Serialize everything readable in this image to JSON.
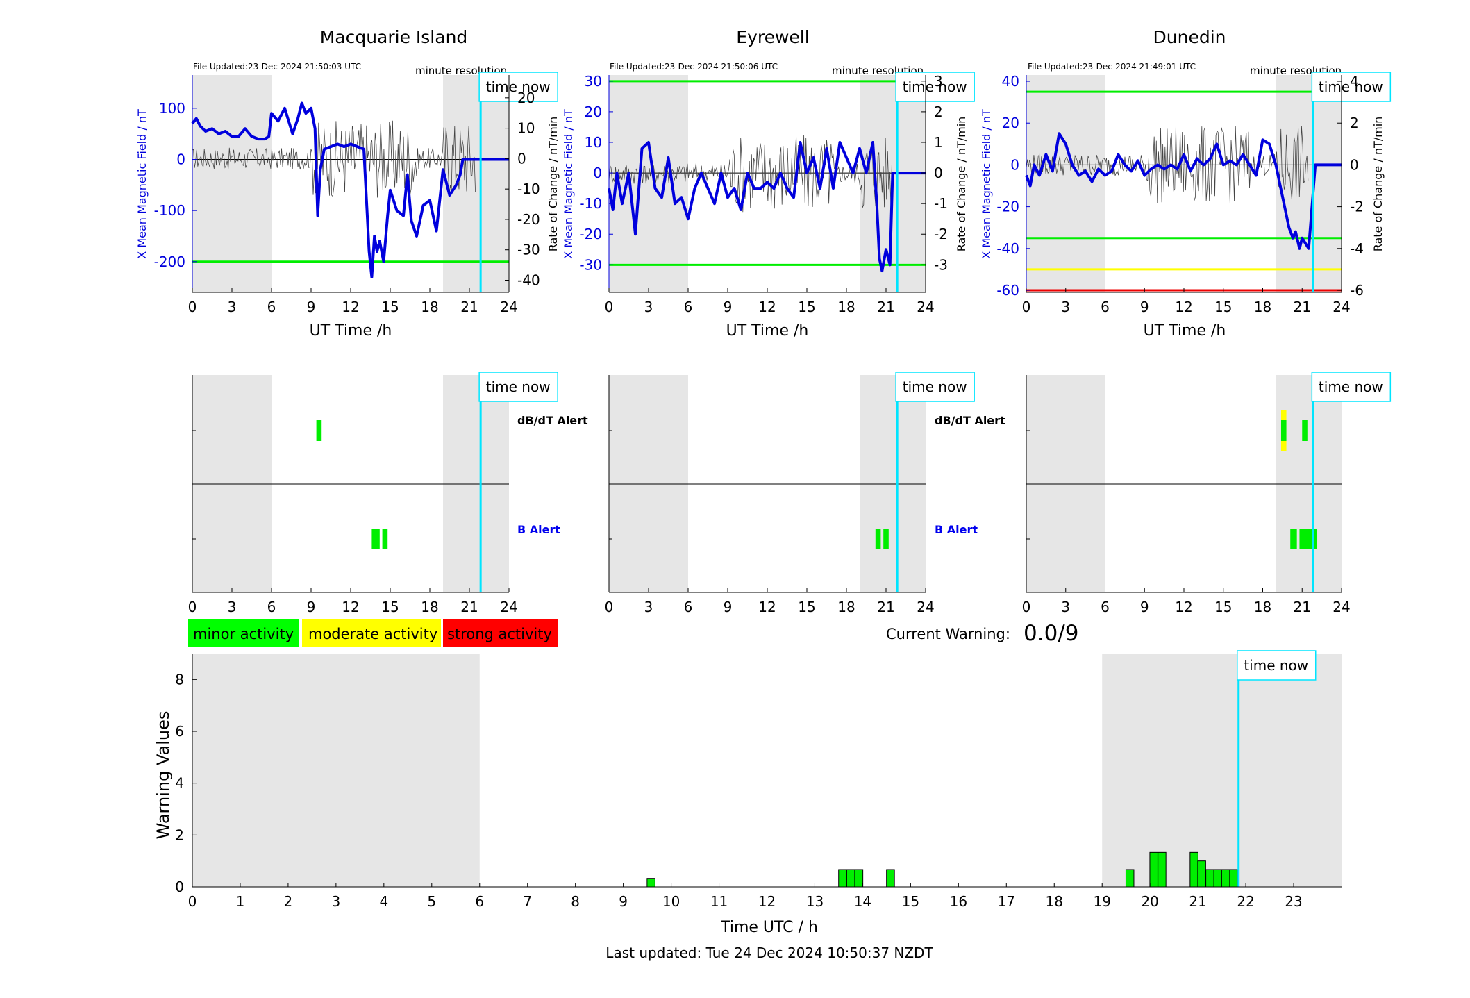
{
  "time_now_label": "time now",
  "minute_resolution_label": "minute resolution",
  "current_warning_label": "Current Warning:",
  "current_warning_value": "0.0/9",
  "last_updated": "Last updated: Tue 24 Dec 2024 10:50:37 NZDT",
  "legend": [
    {
      "label": "minor activity",
      "color": "#00ff00"
    },
    {
      "label": "moderate activity",
      "color": "#ffff00"
    },
    {
      "label": "strong activity",
      "color": "#ff0000"
    }
  ],
  "colors": {
    "field": "#0000dd",
    "rate": "#444444",
    "time_now": "#00e5ff",
    "shade": "#e6e6e6",
    "threshold_green": "#00ee00",
    "threshold_yellow": "#ffff00",
    "threshold_red": "#ee0000"
  },
  "chart_data": [
    {
      "type": "line",
      "station": "Macquarie Island",
      "file_updated": "File Updated:23-Dec-2024 21:50:03 UTC",
      "xlabel": "UT Time /h",
      "ylabel_left": "X Mean Magnetic Field / nT",
      "ylabel_right": "Rate of Change / nT/min",
      "xlim": [
        0,
        24
      ],
      "xticks": [
        0,
        3,
        6,
        9,
        12,
        15,
        18,
        21,
        24
      ],
      "ylim_left": [
        -260,
        165
      ],
      "yticks_left": [
        100,
        0,
        -100,
        -200
      ],
      "ylim_right": [
        -44,
        27.5
      ],
      "yticks_right": [
        20,
        10,
        0,
        -10,
        -20,
        -30,
        -40
      ],
      "shade": [
        [
          0,
          6
        ],
        [
          19,
          24
        ]
      ],
      "time_now": 21.85,
      "thresholds": [
        {
          "value": -200,
          "color": "green"
        }
      ],
      "series": [
        {
          "x": [
            0,
            0.3,
            0.6,
            1,
            1.5,
            2,
            2.5,
            3,
            3.5,
            4,
            4.5,
            5,
            5.5,
            5.8,
            6,
            6.5,
            7,
            7.3,
            7.6,
            8,
            8.3,
            8.6,
            9,
            9.3,
            9.5,
            9.7,
            10,
            10.5,
            11,
            11.5,
            12,
            12.5,
            13,
            13.2,
            13.4,
            13.6,
            13.8,
            14,
            14.2,
            14.5,
            14.8,
            15,
            15.5,
            16,
            16.3,
            16.6,
            17,
            17.5,
            18,
            18.5,
            19,
            19.5,
            20,
            20.3,
            20.5,
            24
          ],
          "values": [
            70,
            80,
            65,
            55,
            60,
            50,
            55,
            45,
            45,
            60,
            45,
            40,
            40,
            45,
            90,
            75,
            100,
            75,
            50,
            80,
            110,
            90,
            100,
            60,
            -110,
            -20,
            20,
            25,
            30,
            25,
            30,
            25,
            20,
            -80,
            -180,
            -230,
            -150,
            -180,
            -160,
            -200,
            -110,
            -60,
            -100,
            -110,
            -30,
            -120,
            -150,
            -90,
            -80,
            -140,
            -20,
            -70,
            -50,
            -30,
            0,
            0
          ]
        }
      ]
    },
    {
      "type": "line",
      "station": "Eyrewell",
      "file_updated": "File Updated:23-Dec-2024 21:50:06 UTC",
      "xlabel": "UT Time /h",
      "ylabel_left": "X Mean Magnetic Field / nT",
      "ylabel_right": "Rate of Change / nT/min",
      "xlim": [
        0,
        24
      ],
      "xticks": [
        0,
        3,
        6,
        9,
        12,
        15,
        18,
        21,
        24
      ],
      "ylim_left": [
        -39,
        32
      ],
      "yticks_left": [
        30,
        20,
        10,
        0,
        -10,
        -20,
        -30
      ],
      "ylim_right": [
        -3.9,
        3.2
      ],
      "yticks_right": [
        3,
        2,
        1,
        0,
        -1,
        -2,
        -3
      ],
      "shade": [
        [
          0,
          6
        ],
        [
          19,
          24
        ]
      ],
      "time_now": 21.85,
      "thresholds": [
        {
          "value": 30,
          "color": "green"
        },
        {
          "value": -30,
          "color": "green"
        }
      ],
      "series": [
        {
          "x": [
            0,
            0.3,
            0.6,
            1,
            1.5,
            2,
            2.5,
            3,
            3.5,
            4,
            4.5,
            5,
            5.5,
            6,
            6.5,
            7,
            7.5,
            8,
            8.5,
            9,
            9.5,
            10,
            10.5,
            11,
            11.5,
            12,
            12.5,
            13,
            13.5,
            14,
            14.5,
            15,
            15.5,
            16,
            16.5,
            17,
            17.5,
            18,
            18.5,
            19,
            19.5,
            20,
            20.3,
            20.5,
            20.7,
            21,
            21.3,
            21.5,
            24
          ],
          "values": [
            -5,
            -12,
            0,
            -10,
            0,
            -20,
            8,
            10,
            -5,
            -8,
            5,
            -10,
            -8,
            -15,
            -5,
            0,
            -5,
            -10,
            0,
            -8,
            -5,
            -12,
            0,
            -5,
            -5,
            -3,
            -5,
            0,
            -5,
            -8,
            10,
            0,
            5,
            -5,
            8,
            -5,
            10,
            5,
            0,
            8,
            0,
            10,
            -10,
            -28,
            -32,
            -25,
            -30,
            0,
            0
          ]
        }
      ]
    },
    {
      "type": "line",
      "station": "Dunedin",
      "file_updated": "File Updated:23-Dec-2024 21:49:01 UTC",
      "xlabel": "UT Time /h",
      "ylabel_left": "X Mean Magnetic Field / nT",
      "ylabel_right": "Rate of Change / nT/min",
      "xlim": [
        0,
        24
      ],
      "xticks": [
        0,
        3,
        6,
        9,
        12,
        15,
        18,
        21,
        24
      ],
      "ylim_left": [
        -61,
        43
      ],
      "yticks_left": [
        40,
        20,
        0,
        -20,
        -40,
        -60
      ],
      "ylim_right": [
        -6.1,
        4.3
      ],
      "yticks_right": [
        4,
        2,
        0,
        -2,
        -4,
        -6
      ],
      "shade": [
        [
          0,
          6
        ],
        [
          19,
          24
        ]
      ],
      "time_now": 21.85,
      "thresholds": [
        {
          "value": 35,
          "color": "green"
        },
        {
          "value": -35,
          "color": "green"
        },
        {
          "value": -50,
          "color": "yellow"
        },
        {
          "value": -60,
          "color": "red"
        }
      ],
      "series": [
        {
          "x": [
            0,
            0.3,
            0.6,
            1,
            1.5,
            2,
            2.5,
            3,
            3.5,
            4,
            4.5,
            5,
            5.5,
            6,
            6.5,
            7,
            7.5,
            8,
            8.5,
            9,
            9.5,
            10,
            10.5,
            11,
            11.5,
            12,
            12.5,
            13,
            13.5,
            14,
            14.5,
            15,
            15.5,
            16,
            16.5,
            17,
            17.5,
            18,
            18.5,
            19,
            19.5,
            20,
            20.3,
            20.5,
            20.8,
            21,
            21.3,
            21.5,
            22,
            24
          ],
          "values": [
            -5,
            -10,
            0,
            -5,
            5,
            -3,
            15,
            10,
            0,
            -5,
            -3,
            -8,
            -2,
            -5,
            -3,
            5,
            0,
            -3,
            2,
            -5,
            -2,
            0,
            -2,
            0,
            -2,
            5,
            -3,
            3,
            0,
            3,
            10,
            0,
            2,
            0,
            5,
            0,
            -5,
            12,
            10,
            0,
            -15,
            -30,
            -35,
            -32,
            -40,
            -35,
            -38,
            -40,
            0,
            0
          ]
        }
      ]
    },
    {
      "type": "bar",
      "station": "Macquarie Island",
      "label_top": "dB/dT Alert",
      "label_bottom": "B Alert",
      "xlim": [
        0,
        24
      ],
      "xticks": [
        0,
        3,
        6,
        9,
        12,
        15,
        18,
        21,
        24
      ],
      "shade": [
        [
          0,
          6
        ],
        [
          19,
          24
        ]
      ],
      "time_now": 21.85,
      "dbdt_alerts": [
        {
          "start": 9.4,
          "end": 9.8,
          "level": "minor"
        }
      ],
      "b_alerts": [
        {
          "start": 13.6,
          "end": 14.2,
          "level": "minor"
        },
        {
          "start": 14.4,
          "end": 14.8,
          "level": "minor"
        }
      ]
    },
    {
      "type": "bar",
      "station": "Eyrewell",
      "label_top": "dB/dT Alert",
      "label_bottom": "B Alert",
      "xlim": [
        0,
        24
      ],
      "xticks": [
        0,
        3,
        6,
        9,
        12,
        15,
        18,
        21,
        24
      ],
      "shade": [
        [
          0,
          6
        ],
        [
          19,
          24
        ]
      ],
      "time_now": 21.85,
      "dbdt_alerts": [],
      "b_alerts": [
        {
          "start": 20.2,
          "end": 20.6,
          "level": "minor"
        },
        {
          "start": 20.8,
          "end": 21.2,
          "level": "minor"
        }
      ]
    },
    {
      "type": "bar",
      "station": "Dunedin",
      "label_top": "",
      "label_bottom": "",
      "xlim": [
        0,
        24
      ],
      "xticks": [
        0,
        3,
        6,
        9,
        12,
        15,
        18,
        21,
        24
      ],
      "shade": [
        [
          0,
          6
        ],
        [
          19,
          24
        ]
      ],
      "time_now": 21.85,
      "dbdt_alerts": [
        {
          "start": 19.4,
          "end": 19.8,
          "level": "moderate",
          "tall": true
        },
        {
          "start": 19.4,
          "end": 19.8,
          "level": "minor"
        },
        {
          "start": 21.0,
          "end": 21.4,
          "level": "minor"
        }
      ],
      "b_alerts": [
        {
          "start": 20.1,
          "end": 20.6,
          "level": "minor"
        },
        {
          "start": 20.8,
          "end": 22.1,
          "level": "minor"
        }
      ]
    },
    {
      "type": "bar",
      "title": "",
      "xlabel": "Time UTC / h",
      "ylabel": "Warning Values",
      "xlim": [
        0,
        24
      ],
      "xticks": [
        0,
        1,
        2,
        3,
        4,
        5,
        6,
        7,
        8,
        9,
        10,
        11,
        12,
        13,
        14,
        15,
        16,
        17,
        18,
        19,
        20,
        21,
        22,
        23
      ],
      "ylim": [
        0,
        9
      ],
      "yticks": [
        0,
        2,
        4,
        6,
        8
      ],
      "shade": [
        [
          0,
          6
        ],
        [
          19,
          24
        ]
      ],
      "time_now": 21.85,
      "bar_width": 0.1667,
      "x": [
        9.58,
        13.58,
        13.75,
        13.92,
        14.58,
        19.58,
        20.08,
        20.25,
        20.92,
        21.08,
        21.25,
        21.42,
        21.58,
        21.75
      ],
      "values": [
        0.33,
        0.67,
        0.67,
        0.67,
        0.67,
        0.67,
        1.33,
        1.33,
        1.33,
        1.0,
        0.67,
        0.67,
        0.67,
        0.67
      ]
    }
  ]
}
